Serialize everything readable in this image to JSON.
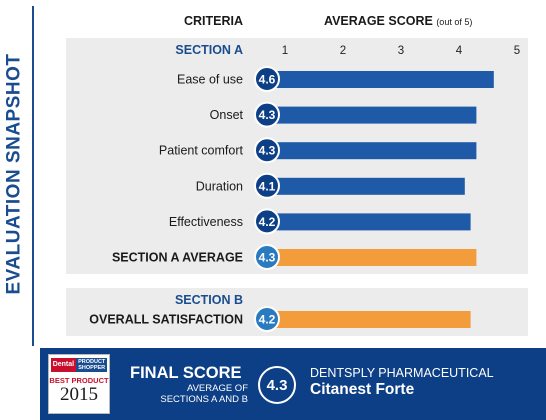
{
  "side_title": "EVALUATION SNAPSHOT",
  "header": {
    "criteria": "CRITERIA",
    "average_score": "AVERAGE SCORE",
    "average_score_unit": "(out of 5)"
  },
  "chart_data": {
    "type": "bar",
    "orientation": "horizontal",
    "xlim": [
      1,
      5
    ],
    "ticks": [
      "1",
      "2",
      "3",
      "4",
      "5"
    ],
    "sections": [
      {
        "title": "SECTION A",
        "rows": [
          {
            "label": "Ease of use",
            "value": 4.6,
            "score_label": "4.6",
            "kind": "item"
          },
          {
            "label": "Onset",
            "value": 4.3,
            "score_label": "4.3",
            "kind": "item"
          },
          {
            "label": "Patient comfort",
            "value": 4.3,
            "score_label": "4.3",
            "kind": "item"
          },
          {
            "label": "Duration",
            "value": 4.1,
            "score_label": "4.1",
            "kind": "item"
          },
          {
            "label": "Effectiveness",
            "value": 4.2,
            "score_label": "4.2",
            "kind": "item"
          },
          {
            "label": "SECTION A AVERAGE",
            "value": 4.3,
            "score_label": "4.3",
            "kind": "average"
          }
        ]
      },
      {
        "title": "SECTION B",
        "rows": [
          {
            "label": "OVERALL SATISFACTION",
            "value": 4.2,
            "score_label": "4.2",
            "kind": "average"
          }
        ]
      }
    ],
    "colors": {
      "item_bar": "#1f5aa8",
      "average_bar": "#f39c3c",
      "circle_dark": "#0d3f86",
      "circle_light": "#2a7ac0"
    }
  },
  "footer": {
    "final_score_label": "FINAL SCORE",
    "final_score_sub_1": "AVERAGE OF",
    "final_score_sub_2": "SECTIONS A AND B",
    "final_score_value": "4.3",
    "manufacturer": "DENTSPLY PHARMACEUTICAL",
    "product": "Citanest Forte",
    "logo": {
      "dental": "Dental",
      "product_line1": "PRODUCT",
      "product_line2": "SHOPPER",
      "best_product": "BEST PRODUCT",
      "year": "2015"
    }
  }
}
